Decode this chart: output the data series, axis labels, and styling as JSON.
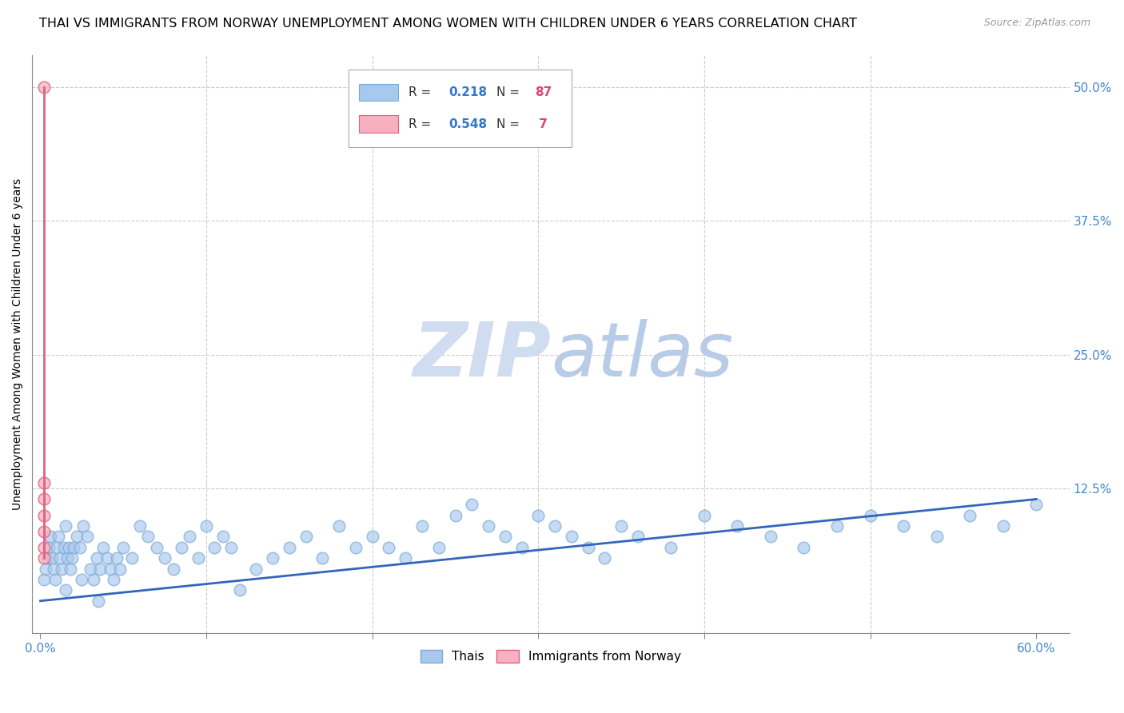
{
  "title": "THAI VS IMMIGRANTS FROM NORWAY UNEMPLOYMENT AMONG WOMEN WITH CHILDREN UNDER 6 YEARS CORRELATION CHART",
  "source": "Source: ZipAtlas.com",
  "ylabel": "Unemployment Among Women with Children Under 6 years",
  "xlim": [
    -0.005,
    0.62
  ],
  "ylim": [
    -0.01,
    0.53
  ],
  "xticks": [
    0.0,
    0.1,
    0.2,
    0.3,
    0.4,
    0.5,
    0.6
  ],
  "yticks": [
    0.0,
    0.125,
    0.25,
    0.375,
    0.5
  ],
  "yticklabels": [
    "",
    "12.5%",
    "25.0%",
    "37.5%",
    "50.0%"
  ],
  "blue_color": "#A8C8EE",
  "blue_edge_color": "#7AAAD4",
  "blue_line_color": "#3366BB",
  "pink_color": "#F8B0C0",
  "pink_edge_color": "#E06080",
  "pink_line_color": "#E06080",
  "tick_color": "#4488CC",
  "grid_color": "#CCCCCC",
  "watermark_color": "#D0DCF0",
  "thai_x": [
    0.002,
    0.003,
    0.004,
    0.005,
    0.006,
    0.007,
    0.008,
    0.009,
    0.01,
    0.011,
    0.012,
    0.013,
    0.014,
    0.015,
    0.016,
    0.017,
    0.018,
    0.019,
    0.02,
    0.022,
    0.024,
    0.026,
    0.028,
    0.03,
    0.032,
    0.034,
    0.036,
    0.038,
    0.04,
    0.042,
    0.044,
    0.046,
    0.048,
    0.05,
    0.055,
    0.06,
    0.065,
    0.07,
    0.075,
    0.08,
    0.085,
    0.09,
    0.095,
    0.1,
    0.105,
    0.11,
    0.115,
    0.12,
    0.13,
    0.14,
    0.15,
    0.16,
    0.17,
    0.18,
    0.19,
    0.2,
    0.21,
    0.22,
    0.23,
    0.24,
    0.25,
    0.26,
    0.27,
    0.28,
    0.29,
    0.3,
    0.31,
    0.32,
    0.33,
    0.34,
    0.35,
    0.36,
    0.38,
    0.4,
    0.42,
    0.44,
    0.46,
    0.48,
    0.5,
    0.52,
    0.54,
    0.56,
    0.58,
    0.6,
    0.015,
    0.025,
    0.035
  ],
  "thai_y": [
    0.04,
    0.05,
    0.06,
    0.07,
    0.08,
    0.06,
    0.05,
    0.04,
    0.07,
    0.08,
    0.06,
    0.05,
    0.07,
    0.09,
    0.06,
    0.07,
    0.05,
    0.06,
    0.07,
    0.08,
    0.07,
    0.09,
    0.08,
    0.05,
    0.04,
    0.06,
    0.05,
    0.07,
    0.06,
    0.05,
    0.04,
    0.06,
    0.05,
    0.07,
    0.06,
    0.09,
    0.08,
    0.07,
    0.06,
    0.05,
    0.07,
    0.08,
    0.06,
    0.09,
    0.07,
    0.08,
    0.07,
    0.03,
    0.05,
    0.06,
    0.07,
    0.08,
    0.06,
    0.09,
    0.07,
    0.08,
    0.07,
    0.06,
    0.09,
    0.07,
    0.1,
    0.11,
    0.09,
    0.08,
    0.07,
    0.1,
    0.09,
    0.08,
    0.07,
    0.06,
    0.09,
    0.08,
    0.07,
    0.1,
    0.09,
    0.08,
    0.07,
    0.09,
    0.1,
    0.09,
    0.08,
    0.1,
    0.09,
    0.11,
    0.03,
    0.04,
    0.02
  ],
  "norway_x": [
    0.002,
    0.002,
    0.002,
    0.002,
    0.002,
    0.002,
    0.002
  ],
  "norway_y": [
    0.5,
    0.13,
    0.115,
    0.1,
    0.085,
    0.07,
    0.06
  ],
  "blue_line_x0": 0.0,
  "blue_line_x1": 0.6,
  "blue_line_y0": 0.02,
  "blue_line_y1": 0.115,
  "pink_line_x0": 0.002,
  "pink_line_x1": 0.002,
  "pink_line_y0": 0.06,
  "pink_line_y1": 0.5,
  "background_color": "#FFFFFF",
  "title_fontsize": 11.5,
  "axis_label_fontsize": 10,
  "tick_fontsize": 11,
  "scatter_size": 110
}
